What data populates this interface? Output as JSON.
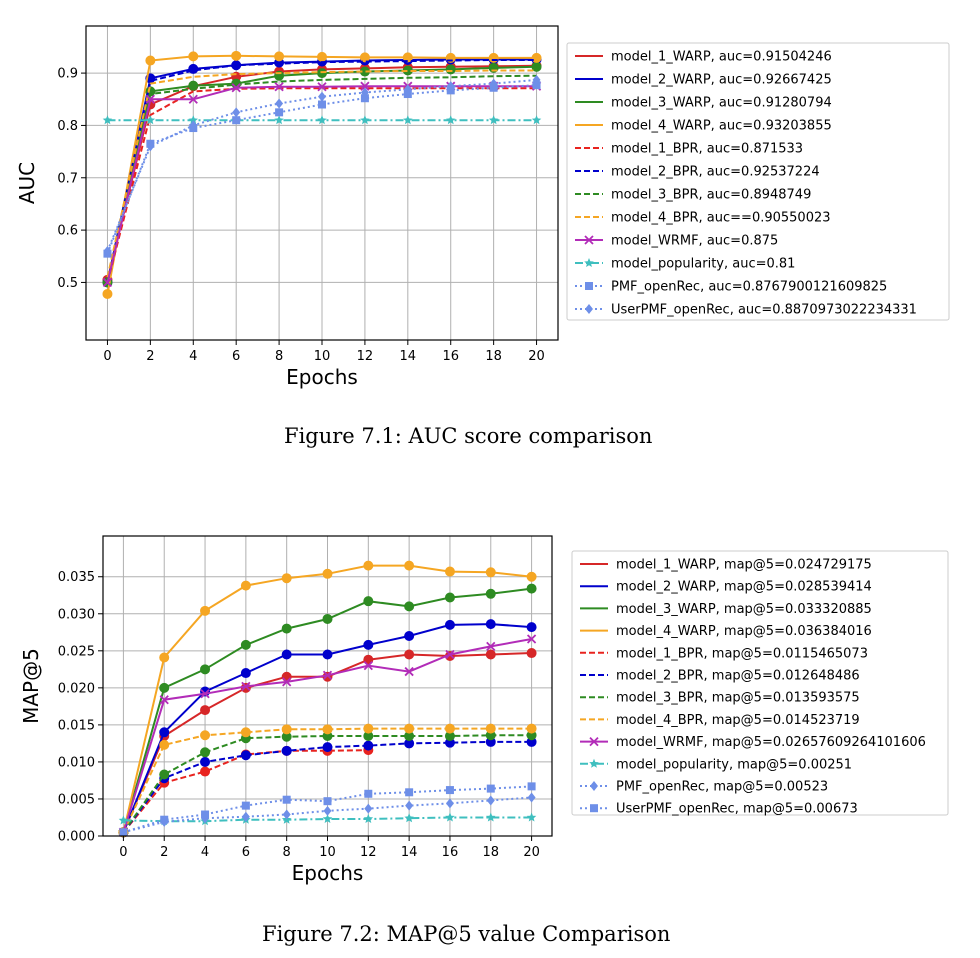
{
  "captions": {
    "fig1": "Figure 7.1: AUC score comparison",
    "fig2": "Figure 7.2: MAP@5 value Comparison"
  },
  "chart_data": [
    {
      "type": "line",
      "xlabel": "Epochs",
      "ylabel": "AUC",
      "xlim": [
        -1,
        21
      ],
      "ylim": [
        0.39,
        0.99
      ],
      "xticks": [
        0,
        2,
        4,
        6,
        8,
        10,
        12,
        14,
        16,
        18,
        20
      ],
      "yticks": [
        0.5,
        0.6,
        0.7,
        0.8,
        0.9
      ],
      "ytick_labels": [
        "0.5",
        "0.6",
        "0.7",
        "0.8",
        "0.9"
      ],
      "grid": true,
      "legend_position": "outside-right",
      "x": [
        0,
        2,
        4,
        6,
        8,
        10,
        12,
        14,
        16,
        18,
        20
      ],
      "series": [
        {
          "name": "model_1_WARP, auc=0.91504246",
          "color": "#d62728",
          "dash": "solid",
          "marker": "circle",
          "values": [
            0.505,
            0.84,
            0.875,
            0.893,
            0.903,
            0.907,
            0.909,
            0.911,
            0.912,
            0.913,
            0.914
          ]
        },
        {
          "name": "model_2_WARP, auc=0.92667425",
          "color": "#0000cc",
          "dash": "solid",
          "marker": "circle",
          "values": [
            0.5,
            0.89,
            0.908,
            0.915,
            0.92,
            0.922,
            0.924,
            0.925,
            0.926,
            0.926,
            0.926
          ]
        },
        {
          "name": "model_3_WARP, auc=0.91280794",
          "color": "#2e8b22",
          "dash": "solid",
          "marker": "circle",
          "values": [
            0.5,
            0.865,
            0.876,
            0.88,
            0.895,
            0.9,
            0.903,
            0.905,
            0.907,
            0.91,
            0.912
          ]
        },
        {
          "name": "model_4_WARP, auc=0.93203855",
          "color": "#f5a623",
          "dash": "solid",
          "marker": "circle",
          "values": [
            0.478,
            0.924,
            0.932,
            0.933,
            0.932,
            0.931,
            0.93,
            0.93,
            0.929,
            0.929,
            0.929
          ]
        },
        {
          "name": "model_1_BPR, auc=0.871533",
          "color": "#e8231f",
          "dash": "dashed",
          "marker": "none",
          "values": [
            0.5,
            0.82,
            0.865,
            0.87,
            0.871,
            0.871,
            0.871,
            0.871,
            0.871,
            0.871,
            0.871
          ]
        },
        {
          "name": "model_2_BPR, auc=0.92537224",
          "color": "#0000cc",
          "dash": "dashed",
          "marker": "none",
          "values": [
            0.5,
            0.885,
            0.905,
            0.915,
            0.918,
            0.921,
            0.922,
            0.923,
            0.924,
            0.925,
            0.925
          ]
        },
        {
          "name": "model_3_BPR, auc=0.8948749",
          "color": "#2e8b22",
          "dash": "dashed",
          "marker": "none",
          "values": [
            0.5,
            0.86,
            0.87,
            0.878,
            0.884,
            0.887,
            0.889,
            0.891,
            0.892,
            0.894,
            0.895
          ]
        },
        {
          "name": "model_4_BPR, auc==0.90550023",
          "color": "#f5a623",
          "dash": "dashed",
          "marker": "none",
          "values": [
            0.51,
            0.88,
            0.893,
            0.898,
            0.9,
            0.902,
            0.903,
            0.904,
            0.904,
            0.905,
            0.905
          ]
        },
        {
          "name": "model_WRMF, auc=0.875",
          "color": "#b22cb8",
          "dash": "solid",
          "marker": "x",
          "values": [
            0.5,
            0.85,
            0.85,
            0.872,
            0.874,
            0.874,
            0.875,
            0.875,
            0.875,
            0.875,
            0.875
          ]
        },
        {
          "name": "model_popularity, auc=0.81",
          "color": "#3fbfbf",
          "dash": "dashdot",
          "marker": "star",
          "values": [
            0.81,
            0.81,
            0.81,
            0.81,
            0.81,
            0.81,
            0.81,
            0.81,
            0.81,
            0.81,
            0.81
          ]
        },
        {
          "name": "PMF_openRec, auc=0.8767900121609825",
          "color": "#6e8fe8",
          "dash": "dotted",
          "marker": "square",
          "values": [
            0.555,
            0.765,
            0.795,
            0.81,
            0.825,
            0.84,
            0.852,
            0.86,
            0.867,
            0.872,
            0.877
          ]
        },
        {
          "name": "UserPMF_openRec, auc=0.8870973022234331",
          "color": "#6e8fe8",
          "dash": "dotted",
          "marker": "diamond",
          "values": [
            0.56,
            0.76,
            0.8,
            0.825,
            0.842,
            0.855,
            0.863,
            0.869,
            0.875,
            0.88,
            0.887
          ]
        }
      ]
    },
    {
      "type": "line",
      "xlabel": "Epochs",
      "ylabel": "MAP@5",
      "xlim": [
        -1,
        21
      ],
      "ylim": [
        0,
        0.0405
      ],
      "xticks": [
        0,
        2,
        4,
        6,
        8,
        10,
        12,
        14,
        16,
        18,
        20
      ],
      "yticks": [
        0,
        0.005,
        0.01,
        0.015,
        0.02,
        0.025,
        0.03,
        0.035
      ],
      "ytick_labels": [
        "0.000",
        "0.005",
        "0.010",
        "0.015",
        "0.020",
        "0.025",
        "0.030",
        "0.035"
      ],
      "grid": true,
      "legend_position": "outside-right",
      "x": [
        0,
        2,
        4,
        6,
        8,
        10,
        12,
        14,
        16,
        18,
        20
      ],
      "series": [
        {
          "name": "model_1_WARP, map@5=0.024729175",
          "color": "#d62728",
          "dash": "solid",
          "marker": "circle",
          "values": [
            0.0005,
            0.0135,
            0.017,
            0.02,
            0.0215,
            0.0215,
            0.0238,
            0.0245,
            0.0243,
            0.0245,
            0.0247
          ]
        },
        {
          "name": "model_2_WARP, map@5=0.028539414",
          "color": "#0000cc",
          "dash": "solid",
          "marker": "circle",
          "values": [
            0.0005,
            0.014,
            0.0195,
            0.022,
            0.0245,
            0.0245,
            0.0258,
            0.027,
            0.0285,
            0.0286,
            0.0282
          ]
        },
        {
          "name": "model_3_WARP, map@5=0.033320885",
          "color": "#2e8b22",
          "dash": "solid",
          "marker": "circle",
          "values": [
            0.0005,
            0.02,
            0.0225,
            0.0258,
            0.028,
            0.0293,
            0.0317,
            0.031,
            0.0322,
            0.0327,
            0.0334
          ]
        },
        {
          "name": "model_4_WARP, map@5=0.036384016",
          "color": "#f5a623",
          "dash": "solid",
          "marker": "circle",
          "values": [
            0.0005,
            0.0241,
            0.0304,
            0.0338,
            0.0348,
            0.0354,
            0.0365,
            0.0365,
            0.0357,
            0.0356,
            0.035
          ]
        },
        {
          "name": "model_1_BPR, map@5=0.0115465073",
          "color": "#e8231f",
          "dash": "dashed",
          "marker": "circle",
          "values": [
            0.0005,
            0.0072,
            0.0087,
            0.011,
            0.0115,
            0.0115,
            0.0116,
            null,
            null,
            null,
            null
          ]
        },
        {
          "name": "model_2_BPR, map@5=0.012648486",
          "color": "#0000cc",
          "dash": "dashed",
          "marker": "circle",
          "values": [
            0.0005,
            0.0078,
            0.01,
            0.0109,
            0.0115,
            0.012,
            0.0122,
            0.0125,
            0.0126,
            0.0127,
            0.0127
          ]
        },
        {
          "name": "model_3_BPR, map@5=0.013593575",
          "color": "#2e8b22",
          "dash": "dashed",
          "marker": "circle",
          "values": [
            0.0005,
            0.0083,
            0.0113,
            0.0132,
            0.0134,
            0.0135,
            0.0135,
            0.0135,
            0.0135,
            0.0136,
            0.0136
          ]
        },
        {
          "name": "model_4_BPR, map@5=0.014523719",
          "color": "#f5a623",
          "dash": "dashed",
          "marker": "circle",
          "values": [
            0.0005,
            0.0123,
            0.0136,
            0.014,
            0.0144,
            0.0144,
            0.0145,
            0.0145,
            0.0145,
            0.0145,
            0.0145
          ]
        },
        {
          "name": "model_WRMF, map@5=0.02657609264101606",
          "color": "#b22cb8",
          "dash": "solid",
          "marker": "x",
          "values": [
            0.0005,
            0.0184,
            0.0192,
            0.0202,
            0.0208,
            0.0217,
            0.023,
            0.0222,
            0.0245,
            0.0256,
            0.0266
          ]
        },
        {
          "name": "model_popularity, map@5=0.00251",
          "color": "#3fbfbf",
          "dash": "dashdot",
          "marker": "star",
          "values": [
            0.0021,
            0.002,
            0.002,
            0.0022,
            0.0022,
            0.0023,
            0.0023,
            0.0024,
            0.0025,
            0.0025,
            0.0025
          ]
        },
        {
          "name": "PMF_openRec, map@5=0.00523",
          "color": "#6e8fe8",
          "dash": "dotted",
          "marker": "diamond",
          "values": [
            0.0005,
            0.0019,
            0.0024,
            0.0026,
            0.0029,
            0.0034,
            0.0037,
            0.0041,
            0.0044,
            0.0048,
            0.0052
          ]
        },
        {
          "name": "UserPMF_openRec, map@5=0.00673",
          "color": "#6e8fe8",
          "dash": "dotted",
          "marker": "square",
          "values": [
            0.0005,
            0.0022,
            0.0029,
            0.0041,
            0.0049,
            0.0047,
            0.0057,
            0.0059,
            0.0062,
            0.0064,
            0.0067
          ]
        }
      ]
    }
  ]
}
